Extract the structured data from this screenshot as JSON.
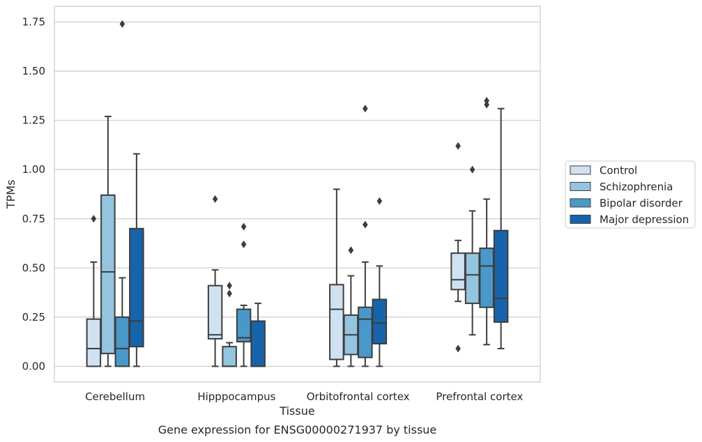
{
  "caption": "Gene expression for ENSG00000271937 by tissue",
  "chart_data": {
    "type": "boxplot",
    "xlabel": "Tissue",
    "ylabel": "TPMs",
    "ylim": [
      -0.08,
      1.83
    ],
    "yticks": [
      "0.00",
      "0.25",
      "0.50",
      "0.75",
      "1.00",
      "1.25",
      "1.50",
      "1.75"
    ],
    "grid": "horizontal",
    "legend_position": "right",
    "categories": [
      "Cerebellum",
      "Hipppocampus",
      "Orbitofrontal cortex",
      "Prefrontal cortex"
    ],
    "colors": [
      "#d0e1f2",
      "#94c4df",
      "#4a98c9",
      "#1764ab"
    ],
    "series": [
      {
        "name": "Control",
        "boxes": [
          {
            "whislo": 0.0,
            "q1": 0.0,
            "med": 0.09,
            "q3": 0.24,
            "whishi": 0.53,
            "fliers": [
              0.75
            ]
          },
          {
            "whislo": 0.0,
            "q1": 0.14,
            "med": 0.16,
            "q3": 0.41,
            "whishi": 0.49,
            "fliers": [
              0.85
            ]
          },
          {
            "whislo": 0.0,
            "q1": 0.035,
            "med": 0.29,
            "q3": 0.415,
            "whishi": 0.9,
            "fliers": []
          },
          {
            "whislo": 0.33,
            "q1": 0.39,
            "med": 0.44,
            "q3": 0.575,
            "whishi": 0.64,
            "fliers": [
              0.09,
              1.12
            ]
          }
        ]
      },
      {
        "name": "Schizophrenia",
        "boxes": [
          {
            "whislo": 0.0,
            "q1": 0.065,
            "med": 0.48,
            "q3": 0.87,
            "whishi": 1.27,
            "fliers": []
          },
          {
            "whislo": 0.0,
            "q1": 0.0,
            "med": 0.0,
            "q3": 0.1,
            "whishi": 0.12,
            "fliers": [
              0.37,
              0.41
            ]
          },
          {
            "whislo": 0.0,
            "q1": 0.06,
            "med": 0.16,
            "q3": 0.26,
            "whishi": 0.46,
            "fliers": [
              0.59
            ]
          },
          {
            "whislo": 0.16,
            "q1": 0.32,
            "med": 0.465,
            "q3": 0.575,
            "whishi": 0.79,
            "fliers": [
              1.0
            ]
          }
        ]
      },
      {
        "name": "Bipolar disorder",
        "boxes": [
          {
            "whislo": 0.0,
            "q1": 0.0,
            "med": 0.09,
            "q3": 0.25,
            "whishi": 0.45,
            "fliers": [
              1.74
            ]
          },
          {
            "whislo": 0.0,
            "q1": 0.125,
            "med": 0.145,
            "q3": 0.29,
            "whishi": 0.31,
            "fliers": [
              0.62,
              0.71
            ]
          },
          {
            "whislo": 0.0,
            "q1": 0.045,
            "med": 0.24,
            "q3": 0.3,
            "whishi": 0.53,
            "fliers": [
              0.72,
              1.31
            ]
          },
          {
            "whislo": 0.11,
            "q1": 0.3,
            "med": 0.51,
            "q3": 0.6,
            "whishi": 0.85,
            "fliers": [
              1.33,
              1.35
            ]
          }
        ]
      },
      {
        "name": "Major depression",
        "boxes": [
          {
            "whislo": 0.0,
            "q1": 0.1,
            "med": 0.23,
            "q3": 0.7,
            "whishi": 1.08,
            "fliers": []
          },
          {
            "whislo": 0.0,
            "q1": 0.0,
            "med": 0.0,
            "q3": 0.23,
            "whishi": 0.32,
            "fliers": []
          },
          {
            "whislo": 0.0,
            "q1": 0.115,
            "med": 0.22,
            "q3": 0.34,
            "whishi": 0.51,
            "fliers": [
              0.84
            ]
          },
          {
            "whislo": 0.09,
            "q1": 0.225,
            "med": 0.345,
            "q3": 0.69,
            "whishi": 1.31,
            "fliers": []
          }
        ]
      }
    ]
  }
}
